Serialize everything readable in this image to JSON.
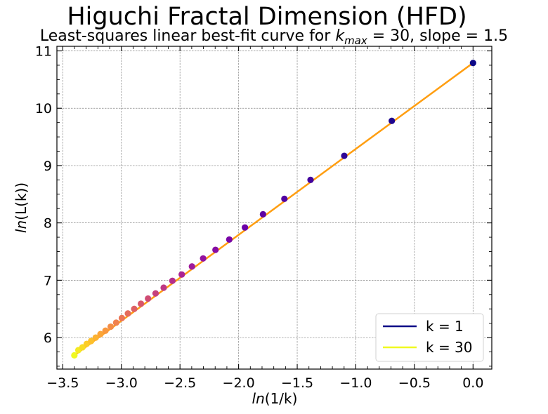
{
  "chart_data": {
    "type": "scatter",
    "title": "Higuchi Fractal Dimension (HFD)",
    "subtitle_parts": [
      "Least-squares linear best-fit curve for ",
      "k",
      "max",
      " = 30, slope = 1.5"
    ],
    "xlabel_parts": [
      "ln",
      "(1/k)"
    ],
    "ylabel_parts": [
      "ln",
      "(L(k))"
    ],
    "xlim": [
      -3.55,
      0.16
    ],
    "ylim": [
      5.45,
      11.08
    ],
    "xticks": [
      -3.5,
      -3.0,
      -2.5,
      -2.0,
      -1.5,
      -1.0,
      -0.5,
      0.0
    ],
    "xtick_labels": [
      "−3.5",
      "−3.0",
      "−2.5",
      "−2.0",
      "−1.5",
      "−1.0",
      "−0.5",
      "0.0"
    ],
    "yticks": [
      6,
      7,
      8,
      9,
      10,
      11
    ],
    "ytick_labels": [
      "6",
      "7",
      "8",
      "9",
      "10",
      "11"
    ],
    "grid": true,
    "fit_line": {
      "color": "#ff9e11",
      "x": [
        -3.4012,
        0.0
      ],
      "y": [
        5.69,
        10.79
      ]
    },
    "points": {
      "k": [
        1,
        2,
        3,
        4,
        5,
        6,
        7,
        8,
        9,
        10,
        11,
        12,
        13,
        14,
        15,
        16,
        17,
        18,
        19,
        20,
        21,
        22,
        23,
        24,
        25,
        26,
        27,
        28,
        29,
        30
      ],
      "x": [
        0.0,
        -0.6931,
        -1.0986,
        -1.3863,
        -1.6094,
        -1.7918,
        -1.9459,
        -2.0794,
        -2.1972,
        -2.3026,
        -2.3979,
        -2.4849,
        -2.5649,
        -2.6391,
        -2.7081,
        -2.7726,
        -2.8332,
        -2.8904,
        -2.9444,
        -2.9957,
        -3.0445,
        -3.091,
        -3.1355,
        -3.1781,
        -3.2189,
        -3.2581,
        -3.2958,
        -3.3322,
        -3.3673,
        -3.4012
      ],
      "y": [
        10.79,
        9.78,
        9.17,
        8.75,
        8.42,
        8.15,
        7.92,
        7.71,
        7.53,
        7.38,
        7.24,
        7.1,
        6.99,
        6.87,
        6.77,
        6.68,
        6.59,
        6.5,
        6.42,
        6.34,
        6.26,
        6.19,
        6.12,
        6.06,
        6.0,
        5.94,
        5.89,
        5.83,
        5.78,
        5.69
      ]
    },
    "colormap": [
      "#0d0887",
      "#46039f",
      "#7201a8",
      "#9c179e",
      "#bd3786",
      "#d8576b",
      "#ed7953",
      "#fb9f3a",
      "#fdca26",
      "#f0f921"
    ],
    "legend": {
      "position": "lower-right",
      "entries": [
        {
          "label": "k = 1",
          "color": "#0d0887"
        },
        {
          "label": "k = 30",
          "color": "#f0f921"
        }
      ]
    }
  }
}
